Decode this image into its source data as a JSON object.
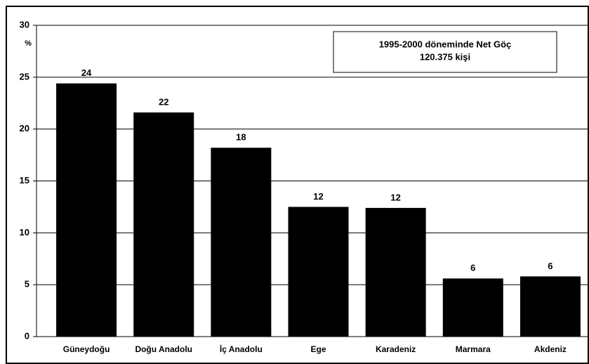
{
  "chart_data": {
    "type": "bar",
    "y_label": "%",
    "annotations": [
      "1995-2000 döneminde Net Göç",
      "120.375 kişi"
    ],
    "categories": [
      "Güneydoğu",
      "Doğu Anadolu",
      "İç Anadolu",
      "Ege",
      "Karadeniz",
      "Marmara",
      "Akdeniz"
    ],
    "values": [
      24.4,
      21.6,
      18.2,
      12.5,
      12.4,
      5.6,
      5.8
    ],
    "value_labels": [
      "24",
      "22",
      "18",
      "12",
      "12",
      "6",
      "6"
    ],
    "color": "#000000",
    "ylim": [
      0,
      30
    ],
    "yticks": [
      0,
      5,
      10,
      15,
      20,
      25,
      30
    ],
    "grid": true
  }
}
